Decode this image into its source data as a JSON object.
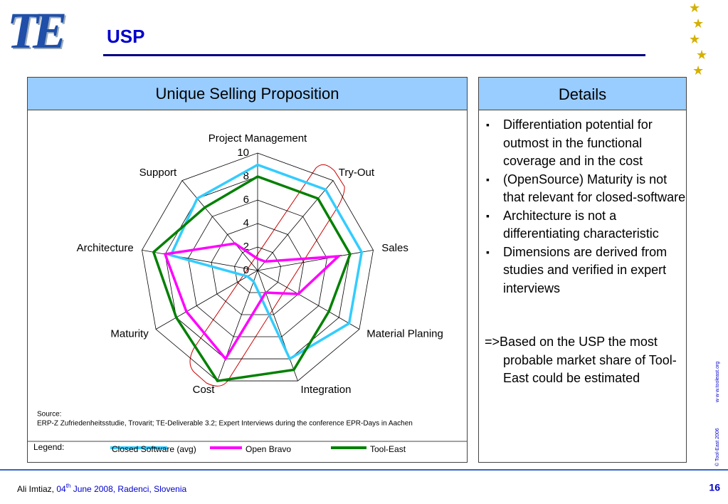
{
  "header": {
    "logo": "TE",
    "title": "USP"
  },
  "chart_data": {
    "type": "radar",
    "title": "Unique Selling Proposition",
    "categories": [
      "Project Management",
      "Try-Out",
      "Sales",
      "Material Planing",
      "Integration",
      "Cost",
      "Maturity",
      "Architecture",
      "Support"
    ],
    "rlim": [
      0,
      10
    ],
    "rticks": [
      0,
      2,
      4,
      6,
      8,
      10
    ],
    "grid": true,
    "series": [
      {
        "name": "Closed Software (avg)",
        "color": "#33ccff",
        "values": [
          9,
          9,
          9,
          9,
          8,
          1,
          1,
          7.5,
          8
        ]
      },
      {
        "name": "Open Bravo",
        "color": "#ff00ff",
        "values": [
          1,
          1,
          7,
          4,
          2,
          8,
          7,
          8,
          3
        ]
      },
      {
        "name": "Tool-East",
        "color": "#008000",
        "values": [
          8,
          8,
          8,
          7,
          9,
          10,
          8,
          9,
          7
        ]
      }
    ],
    "legend_title": "Legend:",
    "source": [
      "Source:",
      "ERP-Z Zufriedenheitsstudie, Trovarit; TE-Deliverable 3.2; Expert Interviews during the conference EPR-Days in Aachen"
    ]
  },
  "details": {
    "title": "Details",
    "bullets": [
      "Differentiation potential for outmost in the functional coverage and in the cost",
      "(OpenSource) Maturity is not that relevant for closed-software",
      "Architecture is not a differentiating characteristic",
      "Dimensions are derived from studies and verified in expert interviews"
    ],
    "conclusion": "=>Based on the USP the most probable market share of Tool-East could be estimated"
  },
  "footer": {
    "author": "Ali Imtiaz, ",
    "day": "04",
    "suffix": "th",
    "rest": " June 2008, Radenci, Slovenia",
    "page": "16"
  },
  "side_note": {
    "copyright": "© Tool-East 2006",
    "url": "w w w.tooleast.org"
  }
}
